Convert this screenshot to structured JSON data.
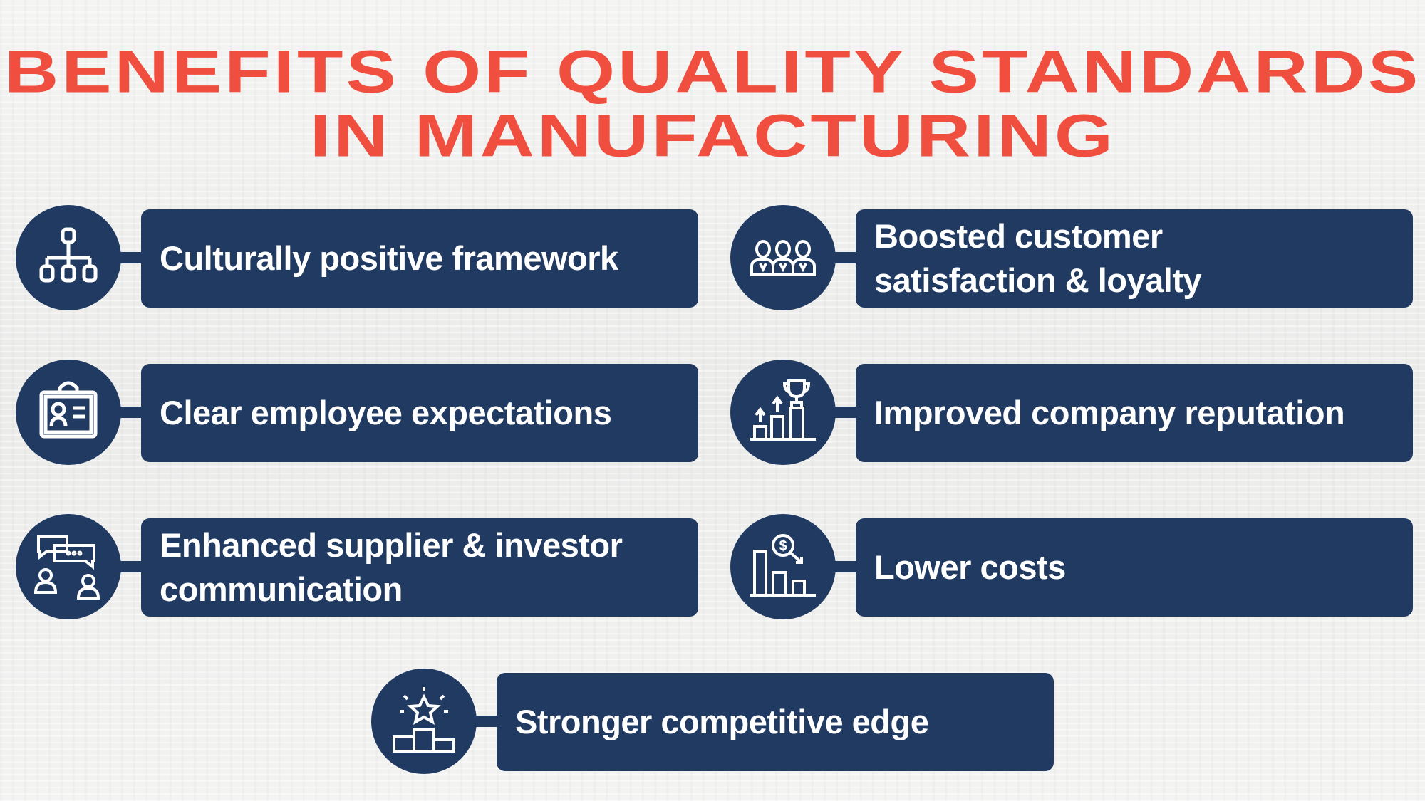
{
  "title": {
    "line1": "BENEFITS OF QUALITY STANDARDS",
    "line2": "IN MANUFACTURING"
  },
  "colors": {
    "title": "#f04e3e",
    "navy": "#213a62",
    "text": "#ffffff"
  },
  "items": [
    {
      "label": "Culturally positive framework",
      "icon": "org-chart-icon"
    },
    {
      "label": "Boosted customer satisfaction & loyalty",
      "icon": "customers-icon"
    },
    {
      "label": "Clear employee expectations",
      "icon": "id-badge-icon"
    },
    {
      "label": "Improved company reputation",
      "icon": "trophy-growth-icon"
    },
    {
      "label": "Enhanced supplier & investor communication",
      "icon": "chat-people-icon"
    },
    {
      "label": "Lower costs",
      "icon": "cost-decrease-icon"
    },
    {
      "label": "Stronger competitive edge",
      "icon": "podium-star-icon"
    }
  ]
}
